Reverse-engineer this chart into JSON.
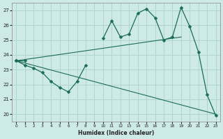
{
  "xlabel": "Humidex (Indice chaleur)",
  "bg_color": "#ceeae6",
  "grid_color": "#b0d4ce",
  "line_color": "#1a6b5a",
  "xlim": [
    -0.5,
    23.5
  ],
  "ylim": [
    19.5,
    27.5
  ],
  "xticks": [
    0,
    1,
    2,
    3,
    4,
    5,
    6,
    7,
    8,
    9,
    10,
    11,
    12,
    13,
    14,
    15,
    16,
    17,
    18,
    19,
    20,
    21,
    22,
    23
  ],
  "yticks": [
    20,
    21,
    22,
    23,
    24,
    25,
    26,
    27
  ],
  "line_upper": {
    "segments": [
      {
        "x": [
          0,
          1
        ],
        "y": [
          23.6,
          23.6
        ]
      },
      {
        "x": [
          10,
          11,
          12,
          13,
          14,
          15,
          16,
          17,
          18,
          19,
          20,
          21,
          22,
          23
        ],
        "y": [
          25.1,
          26.3,
          25.2,
          25.4,
          26.8,
          27.1,
          26.5,
          25.0,
          25.2,
          27.2,
          25.9,
          24.2,
          21.3,
          19.9
        ]
      }
    ]
  },
  "line_lower_zigzag": {
    "x": [
      0,
      1,
      2,
      3,
      4,
      5,
      6,
      7,
      8
    ],
    "y": [
      23.6,
      23.3,
      23.1,
      22.8,
      22.2,
      21.8,
      21.5,
      22.2,
      23.3
    ]
  },
  "line_diagonal": {
    "x": [
      0,
      23
    ],
    "y": [
      23.6,
      20.0
    ]
  },
  "line_flat_upper": {
    "x": [
      0,
      19
    ],
    "y": [
      23.6,
      25.2
    ]
  }
}
